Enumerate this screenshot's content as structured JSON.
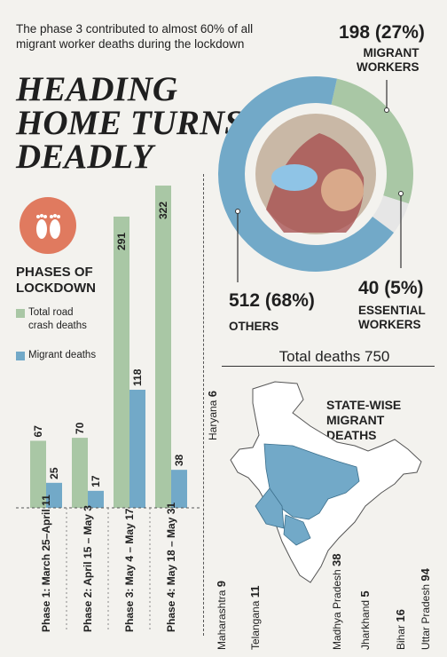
{
  "header": {
    "subtitle": "The phase 3 contributed to almost 60% of all migrant worker deaths during the lockdown",
    "headline_lines": [
      "HEADING",
      "HOME TURNS",
      "DEADLY"
    ]
  },
  "donut": {
    "segments": [
      {
        "value": 198,
        "percent": "27%",
        "label": "MIGRANT WORKERS",
        "value_label": "198 (27%)",
        "color": "#a9c7a5"
      },
      {
        "value": 40,
        "percent": "5%",
        "label": "ESSENTIAL WORKERS",
        "value_label": "40 (5%)",
        "color": "#e6e6e6"
      },
      {
        "value": 512,
        "percent": "68%",
        "label": "OTHERS",
        "value_label": "512 (68%)",
        "color": "#72a9c8"
      }
    ],
    "migrant_line1": "MIGRANT",
    "migrant_line2": "WORKERS",
    "essential_line1": "ESSENTIAL",
    "essential_line2": "WORKERS"
  },
  "chart_data": {
    "type": "bar",
    "title": "PHASES OF LOCKDOWN",
    "categories": [
      "Phase 1: March 25–April 11",
      "Phase 2: April 15 – May 3",
      "Phase 3: May 4 – May 17",
      "Phase 4: May 18 – May 31"
    ],
    "series": [
      {
        "name": "Total road crash deaths",
        "values": [
          67,
          70,
          291,
          322
        ],
        "color": "#a9c7a5"
      },
      {
        "name": "Migrant deaths",
        "values": [
          25,
          17,
          118,
          38
        ],
        "color": "#72a9c8"
      }
    ],
    "ylim": [
      0,
      330
    ]
  },
  "legend": {
    "road_line1": "Total road",
    "road_line2": "crash deaths",
    "migrant": "Migrant deaths"
  },
  "total": "Total deaths 750",
  "map": {
    "title_lines": [
      "STATE-WISE",
      "MIGRANT",
      "DEATHS"
    ],
    "states": [
      {
        "name": "Haryana",
        "value": "6"
      },
      {
        "name": "Maharashtra",
        "value": "9"
      },
      {
        "name": "Telangana",
        "value": "11"
      },
      {
        "name": "Madhya Pradesh",
        "value": "38"
      },
      {
        "name": "Jharkhand",
        "value": "5"
      },
      {
        "name": "Bihar",
        "value": "16"
      },
      {
        "name": "Uttar Pradesh",
        "value": "94"
      }
    ]
  }
}
